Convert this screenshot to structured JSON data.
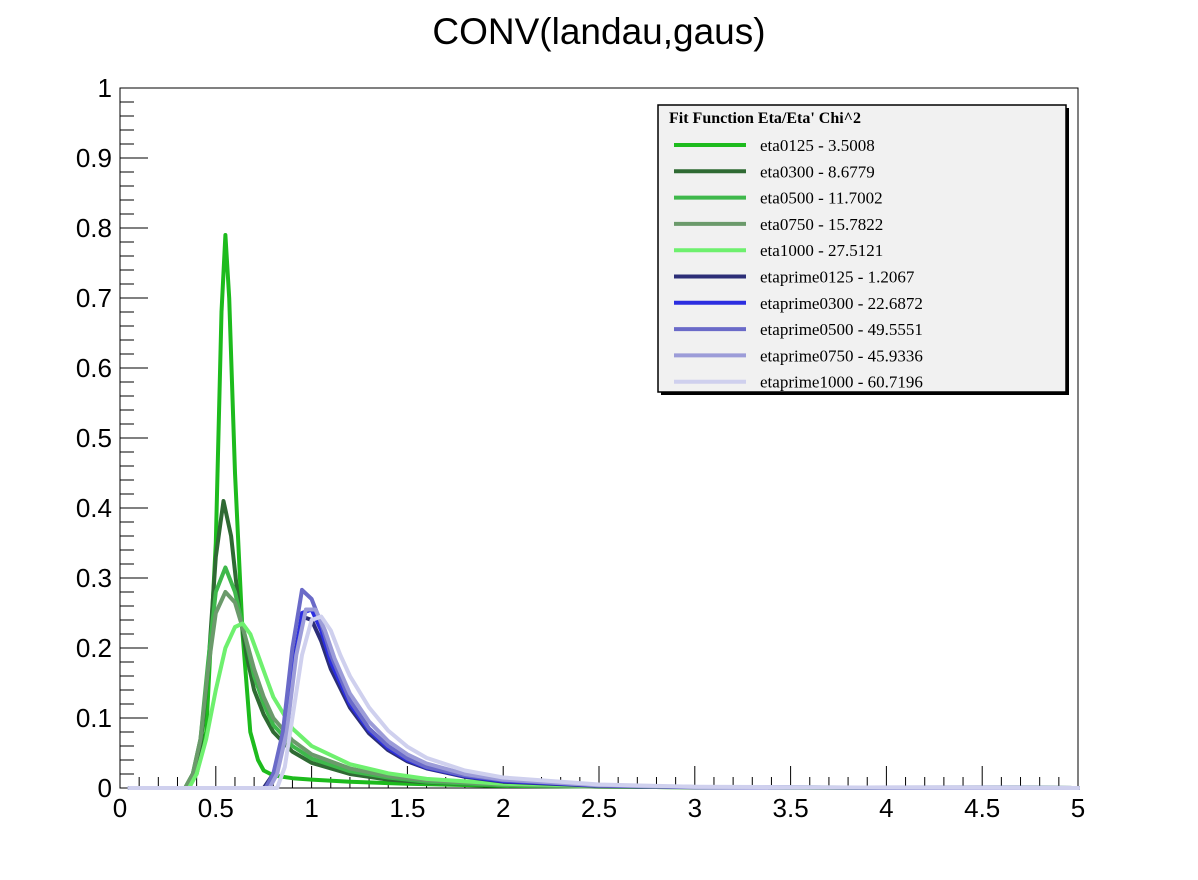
{
  "chart_data": {
    "type": "line",
    "title": "CONV(landau,gaus)",
    "xlabel": "",
    "ylabel": "",
    "xlim": [
      0,
      5
    ],
    "ylim": [
      0,
      1
    ],
    "x_ticks": [
      0,
      0.5,
      1,
      1.5,
      2,
      2.5,
      3,
      3.5,
      4,
      4.5,
      5
    ],
    "x_tick_labels": [
      "0",
      "0.5",
      "1",
      "1.5",
      "2",
      "2.5",
      "3",
      "3.5",
      "4",
      "4.5",
      "5"
    ],
    "y_ticks": [
      0,
      0.1,
      0.2,
      0.3,
      0.4,
      0.5,
      0.6,
      0.7,
      0.8,
      0.9,
      1
    ],
    "y_tick_labels": [
      "0",
      "0.1",
      "0.2",
      "0.3",
      "0.4",
      "0.5",
      "0.6",
      "0.7",
      "0.8",
      "0.9",
      "1"
    ],
    "grid": false,
    "legend": {
      "title": "Fit Function Eta/Eta' Chi^2",
      "placement": "top-right"
    },
    "series": [
      {
        "name": "eta0125 - 3.5008",
        "color": "#1dbb1d",
        "x": [
          0.05,
          0.34,
          0.4,
          0.45,
          0.5,
          0.53,
          0.55,
          0.57,
          0.6,
          0.64,
          0.68,
          0.72,
          0.75,
          0.8,
          0.9,
          1.0,
          1.2,
          1.5,
          2.0,
          2.5,
          3.0,
          4.0,
          5.0
        ],
        "y": [
          0,
          0,
          0.02,
          0.08,
          0.35,
          0.68,
          0.79,
          0.7,
          0.45,
          0.22,
          0.08,
          0.04,
          0.025,
          0.018,
          0.014,
          0.012,
          0.009,
          0.006,
          0.003,
          0.002,
          0.001,
          0.0005,
          0
        ]
      },
      {
        "name": "eta0300 - 8.6779",
        "color": "#2f6a33",
        "x": [
          0.05,
          0.34,
          0.38,
          0.42,
          0.46,
          0.5,
          0.54,
          0.58,
          0.62,
          0.66,
          0.7,
          0.75,
          0.8,
          0.9,
          1.0,
          1.2,
          1.4,
          1.6,
          2.0,
          2.5,
          3.0,
          4.0,
          5.0
        ],
        "y": [
          0,
          0,
          0.02,
          0.06,
          0.17,
          0.33,
          0.41,
          0.36,
          0.26,
          0.19,
          0.14,
          0.105,
          0.08,
          0.052,
          0.036,
          0.02,
          0.012,
          0.008,
          0.004,
          0.002,
          0.001,
          0.0004,
          0
        ]
      },
      {
        "name": "eta0500 - 11.7002",
        "color": "#3eb84b",
        "x": [
          0.05,
          0.34,
          0.38,
          0.42,
          0.46,
          0.5,
          0.55,
          0.6,
          0.65,
          0.7,
          0.75,
          0.8,
          0.9,
          1.0,
          1.2,
          1.4,
          1.6,
          2.0,
          2.5,
          3.0,
          4.0,
          5.0
        ],
        "y": [
          0,
          0,
          0.02,
          0.07,
          0.18,
          0.28,
          0.315,
          0.28,
          0.22,
          0.16,
          0.12,
          0.09,
          0.06,
          0.042,
          0.024,
          0.015,
          0.009,
          0.004,
          0.002,
          0.001,
          0.0004,
          0
        ]
      },
      {
        "name": "eta0750 - 15.7822",
        "color": "#6b9a6b",
        "x": [
          0.05,
          0.34,
          0.38,
          0.42,
          0.46,
          0.5,
          0.55,
          0.6,
          0.65,
          0.7,
          0.75,
          0.8,
          0.9,
          1.0,
          1.2,
          1.4,
          1.6,
          2.0,
          2.5,
          3.0,
          4.0,
          5.0
        ],
        "y": [
          0,
          0,
          0.02,
          0.07,
          0.17,
          0.25,
          0.28,
          0.265,
          0.22,
          0.17,
          0.13,
          0.1,
          0.068,
          0.048,
          0.028,
          0.017,
          0.011,
          0.005,
          0.002,
          0.001,
          0.0004,
          0
        ]
      },
      {
        "name": "eta1000 - 27.5121",
        "color": "#6ef06e",
        "x": [
          0.05,
          0.36,
          0.4,
          0.45,
          0.5,
          0.55,
          0.6,
          0.64,
          0.68,
          0.72,
          0.76,
          0.8,
          0.9,
          1.0,
          1.2,
          1.4,
          1.6,
          2.0,
          2.5,
          3.0,
          4.0,
          5.0
        ],
        "y": [
          0,
          0,
          0.02,
          0.07,
          0.14,
          0.2,
          0.23,
          0.235,
          0.22,
          0.19,
          0.16,
          0.13,
          0.085,
          0.06,
          0.034,
          0.021,
          0.013,
          0.006,
          0.003,
          0.0015,
          0.0005,
          0
        ]
      },
      {
        "name": "etaprime0125 - 1.2067",
        "color": "#2c2e77",
        "x": [
          0.05,
          0.75,
          0.8,
          0.85,
          0.9,
          0.95,
          1.0,
          1.05,
          1.1,
          1.2,
          1.3,
          1.4,
          1.5,
          1.6,
          1.8,
          2.0,
          2.5,
          3.0,
          4.0,
          5.0
        ],
        "y": [
          0,
          0,
          0.02,
          0.07,
          0.17,
          0.245,
          0.24,
          0.21,
          0.17,
          0.115,
          0.078,
          0.054,
          0.038,
          0.028,
          0.016,
          0.009,
          0.003,
          0.0012,
          0.0004,
          0
        ]
      },
      {
        "name": "etaprime0300 - 22.6872",
        "color": "#2c2ee0",
        "x": [
          0.05,
          0.76,
          0.8,
          0.85,
          0.9,
          0.95,
          1.0,
          1.05,
          1.1,
          1.2,
          1.3,
          1.4,
          1.5,
          1.6,
          1.8,
          2.0,
          2.5,
          3.0,
          4.0,
          5.0
        ],
        "y": [
          0,
          0,
          0.015,
          0.06,
          0.16,
          0.25,
          0.255,
          0.225,
          0.18,
          0.12,
          0.082,
          0.057,
          0.04,
          0.029,
          0.017,
          0.01,
          0.0035,
          0.0013,
          0.0004,
          0
        ]
      },
      {
        "name": "etaprime0500 - 49.5551",
        "color": "#6a6ac8",
        "x": [
          0.05,
          0.76,
          0.8,
          0.85,
          0.9,
          0.95,
          1.0,
          1.05,
          1.1,
          1.2,
          1.3,
          1.4,
          1.5,
          1.6,
          1.8,
          2.0,
          2.5,
          3.0,
          4.0,
          5.0
        ],
        "y": [
          0,
          0,
          0.02,
          0.08,
          0.2,
          0.283,
          0.27,
          0.235,
          0.19,
          0.125,
          0.085,
          0.06,
          0.042,
          0.03,
          0.018,
          0.011,
          0.0038,
          0.0014,
          0.0004,
          0
        ]
      },
      {
        "name": "etaprime0750 - 45.9336",
        "color": "#9c9cd8",
        "x": [
          0.05,
          0.78,
          0.82,
          0.87,
          0.92,
          0.97,
          1.02,
          1.07,
          1.12,
          1.2,
          1.3,
          1.4,
          1.5,
          1.6,
          1.8,
          2.0,
          2.5,
          3.0,
          4.0,
          5.0
        ],
        "y": [
          0,
          0,
          0.02,
          0.08,
          0.19,
          0.255,
          0.255,
          0.225,
          0.185,
          0.135,
          0.095,
          0.067,
          0.048,
          0.035,
          0.02,
          0.012,
          0.004,
          0.0015,
          0.0005,
          0
        ]
      },
      {
        "name": "etaprime1000 - 60.7196",
        "color": "#cfd0ee",
        "x": [
          0.05,
          0.82,
          0.86,
          0.9,
          0.95,
          1.0,
          1.05,
          1.1,
          1.15,
          1.2,
          1.3,
          1.4,
          1.5,
          1.6,
          1.8,
          2.0,
          2.5,
          3.0,
          4.0,
          5.0
        ],
        "y": [
          0,
          0,
          0.03,
          0.1,
          0.19,
          0.24,
          0.245,
          0.225,
          0.19,
          0.16,
          0.115,
          0.082,
          0.059,
          0.043,
          0.025,
          0.015,
          0.005,
          0.0018,
          0.0005,
          0
        ]
      }
    ]
  }
}
